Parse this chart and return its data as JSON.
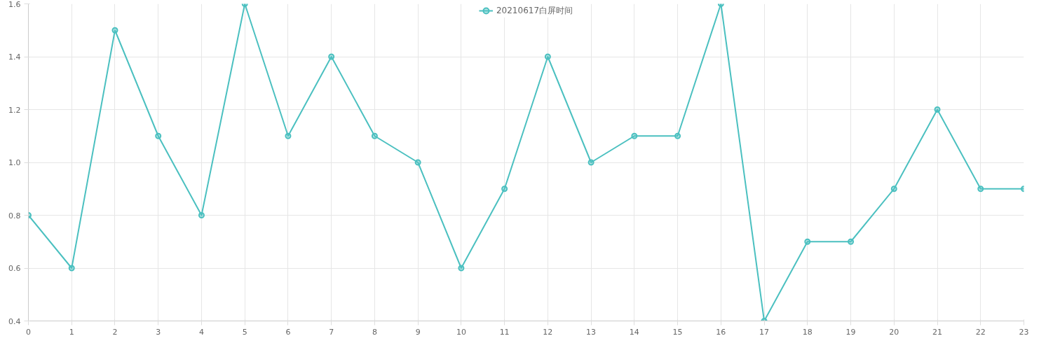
{
  "chart_data": {
    "type": "line",
    "x": [
      0,
      1,
      2,
      3,
      4,
      5,
      6,
      7,
      8,
      9,
      10,
      11,
      12,
      13,
      14,
      15,
      16,
      17,
      18,
      19,
      20,
      21,
      22,
      23
    ],
    "series": [
      {
        "name": "20210617白屏时间",
        "color": "#4bc0c0",
        "values": [
          0.8,
          0.6,
          1.5,
          1.1,
          0.8,
          1.6,
          1.1,
          1.4,
          1.1,
          1.0,
          0.6,
          0.9,
          1.4,
          1.0,
          1.1,
          1.1,
          1.6,
          0.4,
          0.7,
          0.7,
          0.9,
          1.2,
          0.9,
          0.9
        ]
      }
    ],
    "xlim": [
      0,
      23
    ],
    "xticks": [
      0,
      1,
      2,
      3,
      4,
      5,
      6,
      7,
      8,
      9,
      10,
      11,
      12,
      13,
      14,
      15,
      16,
      17,
      18,
      19,
      20,
      21,
      22,
      23
    ],
    "ylim": [
      0.4,
      1.6
    ],
    "yticks": [
      {
        "value": 0.4,
        "label": "0.4"
      },
      {
        "value": 0.6,
        "label": "0.6"
      },
      {
        "value": 0.8,
        "label": "0.8"
      },
      {
        "value": 1.0,
        "label": "1.0"
      },
      {
        "value": 1.2,
        "label": "1.2"
      },
      {
        "value": 1.4,
        "label": "1.4"
      },
      {
        "value": 1.6,
        "label": "1.6"
      }
    ],
    "grid": true,
    "legend": "top",
    "marker": "circle",
    "line_style": "solid"
  }
}
